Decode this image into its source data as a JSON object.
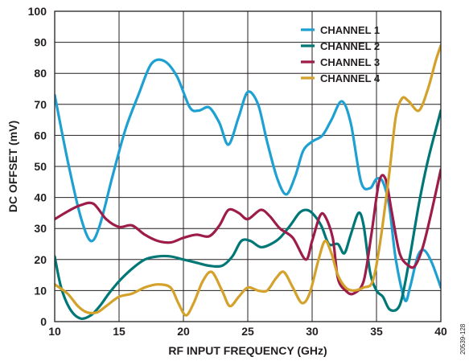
{
  "chart_data": {
    "type": "line",
    "xlabel": "RF INPUT FREQUENCY (GHz)",
    "ylabel": "DC OFFSET (mV)",
    "xlim": [
      10,
      40
    ],
    "ylim": [
      0,
      100
    ],
    "xticks": [
      10,
      15,
      20,
      25,
      30,
      35,
      40
    ],
    "yticks": [
      0,
      10,
      20,
      30,
      40,
      50,
      60,
      70,
      80,
      90,
      100
    ],
    "grid": true,
    "legend_position": "top-right",
    "series": [
      {
        "name": "CHANNEL 1",
        "color": "#1ea1d2",
        "x": [
          10,
          11,
          12,
          12.8,
          13.5,
          14.5,
          15.5,
          16.5,
          17.5,
          18.5,
          19.5,
          20.5,
          21.2,
          22,
          22.8,
          23.5,
          24.3,
          25,
          25.8,
          26.5,
          27.3,
          28,
          28.7,
          29.3,
          30,
          30.8,
          31.5,
          32.3,
          33,
          33.8,
          34.5,
          35,
          35.5,
          36,
          36.5,
          37.2,
          37.6,
          38.2,
          38.7,
          39.3,
          40
        ],
        "y": [
          73,
          52,
          34,
          26,
          31,
          47,
          62,
          73,
          83,
          84,
          79,
          69,
          68,
          69,
          64,
          57,
          66,
          74,
          70,
          58,
          46,
          41,
          47,
          55,
          58,
          60,
          65,
          71,
          64,
          45,
          43,
          46,
          45,
          37,
          20,
          7,
          11,
          21,
          23,
          19,
          11
        ]
      },
      {
        "name": "CHANNEL 2",
        "color": "#007777",
        "x": [
          10,
          10.5,
          11.2,
          12,
          12.8,
          13.5,
          14.2,
          15,
          16,
          17,
          18,
          19,
          20,
          21,
          22,
          23,
          23.8,
          24.5,
          25.2,
          26,
          26.8,
          27.5,
          28.3,
          29,
          29.5,
          30,
          30.7,
          31.3,
          32,
          32.5,
          33,
          33.6,
          34,
          34.5,
          35,
          35.5,
          36,
          36.6,
          37,
          37.6,
          38.3,
          39,
          40
        ],
        "y": [
          21,
          11,
          4,
          1,
          2,
          5,
          9,
          13,
          17,
          20,
          21,
          21,
          20,
          19,
          18,
          18,
          21,
          26,
          26,
          24,
          25,
          27,
          31,
          35,
          36,
          35,
          31,
          25,
          25,
          22,
          28,
          35,
          31,
          16,
          10,
          8,
          4,
          4,
          8,
          21,
          38,
          52,
          68
        ]
      },
      {
        "name": "CHANNEL 3",
        "color": "#9e1c4a",
        "x": [
          10,
          11,
          12,
          13,
          14,
          15,
          16,
          17,
          18,
          19,
          20,
          21,
          22,
          22.8,
          23.5,
          24.3,
          25,
          26,
          26.7,
          27.5,
          28.5,
          29.5,
          30,
          30.6,
          31,
          31.6,
          32,
          32.6,
          33.2,
          34,
          34.6,
          35.2,
          35.7,
          36.2,
          36.8,
          37.5,
          38,
          38.6,
          39.2,
          40
        ],
        "y": [
          33,
          35.5,
          37.5,
          38,
          33,
          30.5,
          31,
          28,
          26,
          25.5,
          27,
          28,
          27.5,
          31,
          36,
          35,
          33,
          36,
          34,
          30,
          27,
          20,
          26,
          34,
          34,
          27,
          14,
          10,
          9,
          13,
          28,
          45,
          46,
          35,
          22,
          18,
          18,
          24,
          34,
          49
        ]
      },
      {
        "name": "CHANNEL 4",
        "color": "#d4a12b",
        "x": [
          10,
          11,
          11.8,
          12.5,
          13.3,
          14,
          15,
          16,
          17,
          18,
          19,
          19.6,
          20.2,
          20.8,
          21.5,
          22.2,
          23,
          23.6,
          24.3,
          25,
          25.8,
          26.5,
          27.2,
          27.8,
          28.5,
          29.2,
          29.8,
          30.5,
          31,
          31.5,
          32,
          32.6,
          33.2,
          34,
          34.7,
          35.3,
          36,
          36.5,
          37,
          37.5,
          38.3,
          39,
          39.6,
          40
        ],
        "y": [
          12,
          9,
          5,
          3,
          3,
          5,
          8,
          9,
          11,
          12,
          11,
          6,
          2,
          6,
          13,
          16,
          10,
          5,
          8,
          11,
          10,
          10,
          14,
          16,
          11,
          6,
          9,
          20,
          26,
          22,
          15,
          11,
          10,
          11,
          13,
          26,
          48,
          66,
          72,
          71,
          68,
          75,
          84,
          89
        ]
      }
    ],
    "figure_id": "20539-128"
  }
}
